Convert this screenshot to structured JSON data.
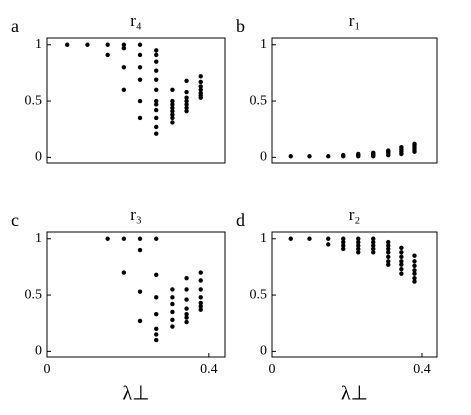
{
  "chart_data": [
    {
      "type": "scatter",
      "panel_label": "a",
      "title": "r₄",
      "color": "#000000",
      "x": [
        0.05,
        0.1,
        0.15,
        0.15,
        0.19,
        0.19,
        0.19,
        0.19,
        0.23,
        0.23,
        0.23,
        0.23,
        0.23,
        0.23,
        0.27,
        0.27,
        0.27,
        0.27,
        0.27,
        0.27,
        0.27,
        0.27,
        0.27,
        0.27,
        0.27,
        0.27,
        0.31,
        0.31,
        0.31,
        0.31,
        0.31,
        0.31,
        0.31,
        0.31,
        0.345,
        0.345,
        0.345,
        0.345,
        0.345,
        0.345,
        0.345,
        0.38,
        0.38,
        0.38,
        0.38,
        0.38,
        0.38,
        0.38
      ],
      "y": [
        1,
        1,
        1,
        0.91,
        1,
        0.97,
        0.8,
        0.6,
        1,
        0.91,
        0.8,
        0.69,
        0.5,
        0.35,
        0.95,
        0.91,
        0.85,
        0.77,
        0.69,
        0.6,
        0.5,
        0.47,
        0.42,
        0.35,
        0.27,
        0.21,
        0.6,
        0.5,
        0.47,
        0.44,
        0.41,
        0.38,
        0.35,
        0.31,
        0.68,
        0.58,
        0.53,
        0.5,
        0.47,
        0.44,
        0.41,
        0.72,
        0.67,
        0.63,
        0.6,
        0.57,
        0.55,
        0.53
      ],
      "xlim": [
        0,
        0.44
      ],
      "ylim": [
        -0.05,
        1.06
      ],
      "yticks": [
        0,
        0.5,
        1
      ]
    },
    {
      "type": "scatter",
      "panel_label": "b",
      "title": "r₁",
      "color": "#000000",
      "x": [
        0.05,
        0.1,
        0.15,
        0.19,
        0.19,
        0.23,
        0.23,
        0.23,
        0.27,
        0.27,
        0.27,
        0.27,
        0.31,
        0.31,
        0.31,
        0.31,
        0.345,
        0.345,
        0.345,
        0.345,
        0.38,
        0.38,
        0.38,
        0.38,
        0.38
      ],
      "y": [
        0.01,
        0.01,
        0.01,
        0.01,
        0.02,
        0.01,
        0.02,
        0.03,
        0.01,
        0.02,
        0.03,
        0.04,
        0.02,
        0.04,
        0.05,
        0.06,
        0.03,
        0.05,
        0.07,
        0.09,
        0.05,
        0.07,
        0.09,
        0.11,
        0.12
      ],
      "xlim": [
        0,
        0.44
      ],
      "ylim": [
        -0.05,
        1.06
      ],
      "yticks": [
        0,
        0.5,
        1
      ]
    },
    {
      "type": "scatter",
      "panel_label": "c",
      "title": "r₃",
      "color": "#000000",
      "x": [
        0.15,
        0.19,
        0.19,
        0.23,
        0.23,
        0.23,
        0.23,
        0.27,
        0.27,
        0.27,
        0.27,
        0.27,
        0.27,
        0.27,
        0.31,
        0.31,
        0.31,
        0.31,
        0.31,
        0.31,
        0.345,
        0.345,
        0.345,
        0.345,
        0.345,
        0.345,
        0.345,
        0.38,
        0.38,
        0.38,
        0.38,
        0.38,
        0.38,
        0.38
      ],
      "y": [
        1,
        1,
        0.7,
        1,
        0.9,
        0.53,
        0.27,
        1,
        0.68,
        0.48,
        0.33,
        0.2,
        0.15,
        0.1,
        0.55,
        0.48,
        0.42,
        0.35,
        0.28,
        0.22,
        0.65,
        0.55,
        0.46,
        0.38,
        0.33,
        0.3,
        0.26,
        0.7,
        0.63,
        0.55,
        0.48,
        0.43,
        0.4,
        0.37
      ],
      "xlim": [
        0,
        0.44
      ],
      "ylim": [
        -0.05,
        1.06
      ],
      "yticks": [
        0,
        0.5,
        1
      ],
      "xticks": [
        0,
        0.4
      ],
      "xlabel": "λ⊥"
    },
    {
      "type": "scatter",
      "panel_label": "d",
      "title": "r₂",
      "color": "#000000",
      "x": [
        0.05,
        0.1,
        0.15,
        0.15,
        0.19,
        0.19,
        0.19,
        0.19,
        0.23,
        0.23,
        0.23,
        0.23,
        0.23,
        0.27,
        0.27,
        0.27,
        0.27,
        0.27,
        0.31,
        0.31,
        0.31,
        0.31,
        0.31,
        0.31,
        0.31,
        0.345,
        0.345,
        0.345,
        0.345,
        0.345,
        0.345,
        0.345,
        0.38,
        0.38,
        0.38,
        0.38,
        0.38,
        0.38,
        0.38
      ],
      "y": [
        1,
        1,
        1,
        0.95,
        1,
        0.97,
        0.94,
        0.91,
        1,
        0.97,
        0.94,
        0.91,
        0.88,
        1,
        0.97,
        0.94,
        0.91,
        0.88,
        0.97,
        0.94,
        0.91,
        0.88,
        0.84,
        0.8,
        0.77,
        0.92,
        0.88,
        0.84,
        0.8,
        0.77,
        0.73,
        0.69,
        0.85,
        0.8,
        0.76,
        0.72,
        0.69,
        0.65,
        0.62
      ],
      "xlim": [
        0,
        0.44
      ],
      "ylim": [
        -0.05,
        1.06
      ],
      "yticks": [
        0,
        0.5,
        1
      ],
      "xticks": [
        0,
        0.4
      ],
      "xlabel": "λ⊥"
    }
  ]
}
